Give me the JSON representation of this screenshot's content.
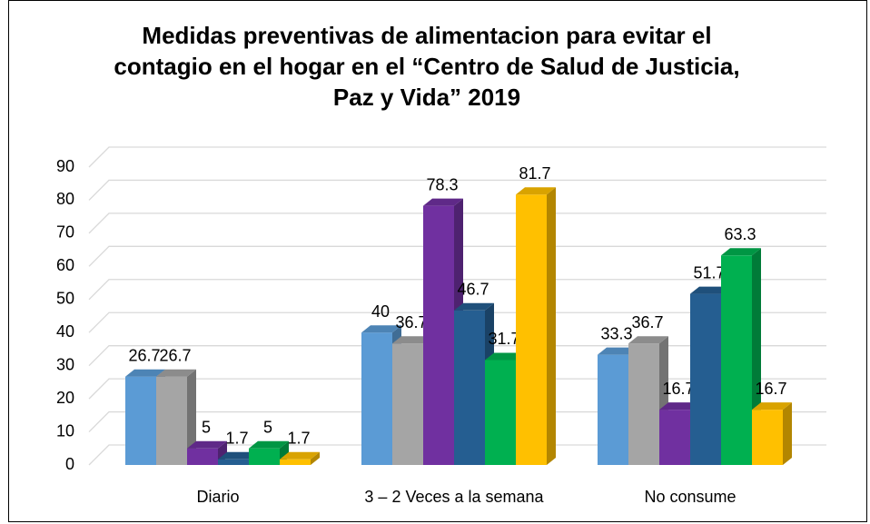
{
  "chart_data": {
    "type": "bar3d",
    "title": "Medidas preventivas de alimentacion para evitar el contagio en el hogar en el “Centro de Salud de Justicia, Paz y Vida” 2019",
    "categories": [
      "Diario",
      "3 – 2 Veces a la semana",
      "No consume"
    ],
    "series": [
      {
        "color": "#5b9bd5",
        "values": [
          26.7,
          40,
          33.3
        ]
      },
      {
        "color": "#a5a5a5",
        "values": [
          26.7,
          36.7,
          36.7
        ]
      },
      {
        "color": "#7030a0",
        "values": [
          5,
          78.3,
          16.7
        ]
      },
      {
        "color": "#255e91",
        "values": [
          1.7,
          46.7,
          51.7
        ]
      },
      {
        "color": "#00b050",
        "values": [
          5,
          31.7,
          63.3
        ]
      },
      {
        "color": "#ffc000",
        "values": [
          1.7,
          81.7,
          16.7
        ]
      }
    ],
    "ylim": [
      0,
      90
    ],
    "yticks": [
      0,
      10,
      20,
      30,
      40,
      50,
      60,
      70,
      80,
      90
    ],
    "grid": true
  }
}
